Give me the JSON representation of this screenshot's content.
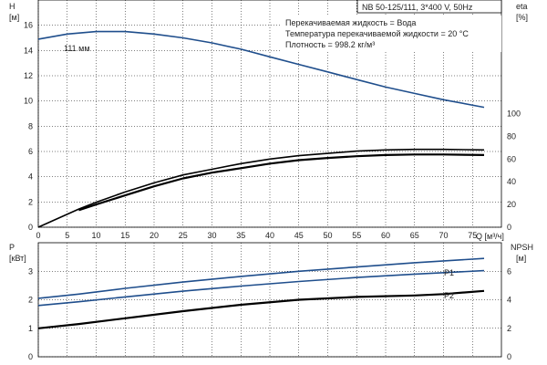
{
  "colors": {
    "blue": "#1f4e8c",
    "black": "#000000",
    "frame": "#000000"
  },
  "legend_box": "NB 50-125/111, 3*400 V, 50Hz",
  "info_lines": [
    "Перекачиваемая жидкость = Вода",
    "Температура перекачиваемой жидкости = 20 °C",
    "Плотность = 998.2 кг/м³"
  ],
  "chart_data": [
    {
      "type": "line",
      "xlabel": "Q [м³/ч]",
      "x_ticks": [
        "0",
        "5",
        "10",
        "15",
        "20",
        "25",
        "30",
        "35",
        "40",
        "45",
        "50",
        "55",
        "60",
        "65",
        "70",
        "75"
      ],
      "xlim": [
        0,
        80
      ],
      "ylabel_left": "H",
      "ylabel_left_unit": "[м]",
      "ylim_left": [
        0,
        18
      ],
      "y_ticks_left": [
        "0",
        "2",
        "4",
        "6",
        "8",
        "10",
        "12",
        "14",
        "16"
      ],
      "ylabel_right": "eta",
      "ylabel_right_unit": "[%]",
      "ylim_right": [
        0,
        200
      ],
      "y_ticks_right": [
        "0",
        "20",
        "40",
        "60",
        "80",
        "100"
      ],
      "grid": true,
      "series": [
        {
          "name": "111 мм",
          "axis": "left",
          "color": "blue",
          "points": [
            [
              0,
              14.9
            ],
            [
              5,
              15.3
            ],
            [
              10,
              15.5
            ],
            [
              15,
              15.5
            ],
            [
              20,
              15.3
            ],
            [
              25,
              15.0
            ],
            [
              30,
              14.6
            ],
            [
              35,
              14.1
            ],
            [
              40,
              13.5
            ],
            [
              45,
              12.9
            ],
            [
              50,
              12.3
            ],
            [
              55,
              11.7
            ],
            [
              60,
              11.1
            ],
            [
              65,
              10.6
            ],
            [
              70,
              10.1
            ],
            [
              77,
              9.5
            ]
          ]
        },
        {
          "axis": "right",
          "color": "black",
          "points": [
            [
              0,
              0
            ],
            [
              7,
              16
            ],
            [
              10,
              22
            ],
            [
              15,
              31
            ],
            [
              20,
              39
            ],
            [
              25,
              46
            ],
            [
              30,
              51
            ],
            [
              35,
              56
            ],
            [
              40,
              60
            ],
            [
              45,
              63
            ],
            [
              50,
              65
            ],
            [
              55,
              67
            ],
            [
              60,
              68
            ],
            [
              65,
              68.5
            ],
            [
              70,
              68.5
            ],
            [
              77,
              68
            ]
          ]
        },
        {
          "axis": "right",
          "color": "black",
          "points": [
            [
              7,
              15
            ],
            [
              10,
              20
            ],
            [
              15,
              28
            ],
            [
              20,
              36
            ],
            [
              25,
              43
            ],
            [
              30,
              48
            ],
            [
              35,
              52
            ],
            [
              40,
              56
            ],
            [
              45,
              59
            ],
            [
              50,
              61
            ],
            [
              55,
              62.5
            ],
            [
              60,
              63.5
            ],
            [
              65,
              64
            ],
            [
              70,
              64
            ],
            [
              77,
              63.5
            ]
          ]
        }
      ]
    },
    {
      "type": "line",
      "xlim": [
        0,
        80
      ],
      "ylabel_left": "P",
      "ylabel_left_unit": "[кВт]",
      "ylim_left": [
        0,
        4
      ],
      "y_ticks_left": [
        "0",
        "1",
        "2",
        "3"
      ],
      "ylabel_right": "NPSH",
      "ylabel_right_unit": "[м]",
      "ylim_right": [
        0,
        8
      ],
      "y_ticks_right": [
        "0",
        "2",
        "4",
        "6"
      ],
      "grid": true,
      "series": [
        {
          "name": "P1",
          "axis": "left",
          "color": "blue",
          "points": [
            [
              0,
              2.05
            ],
            [
              7,
              2.2
            ],
            [
              15,
              2.4
            ],
            [
              25,
              2.62
            ],
            [
              35,
              2.82
            ],
            [
              45,
              3.0
            ],
            [
              55,
              3.15
            ],
            [
              65,
              3.3
            ],
            [
              77,
              3.45
            ]
          ]
        },
        {
          "name": "P2",
          "axis": "left",
          "color": "blue",
          "points": [
            [
              0,
              1.8
            ],
            [
              7,
              1.93
            ],
            [
              15,
              2.1
            ],
            [
              25,
              2.3
            ],
            [
              35,
              2.48
            ],
            [
              45,
              2.64
            ],
            [
              55,
              2.78
            ],
            [
              65,
              2.9
            ],
            [
              77,
              3.02
            ]
          ]
        },
        {
          "axis": "right",
          "color": "black",
          "points": [
            [
              0,
              2.0
            ],
            [
              7,
              2.3
            ],
            [
              15,
              2.7
            ],
            [
              25,
              3.2
            ],
            [
              35,
              3.65
            ],
            [
              45,
              4.0
            ],
            [
              55,
              4.2
            ],
            [
              65,
              4.3
            ],
            [
              70,
              4.4
            ],
            [
              77,
              4.62
            ]
          ]
        }
      ]
    }
  ]
}
